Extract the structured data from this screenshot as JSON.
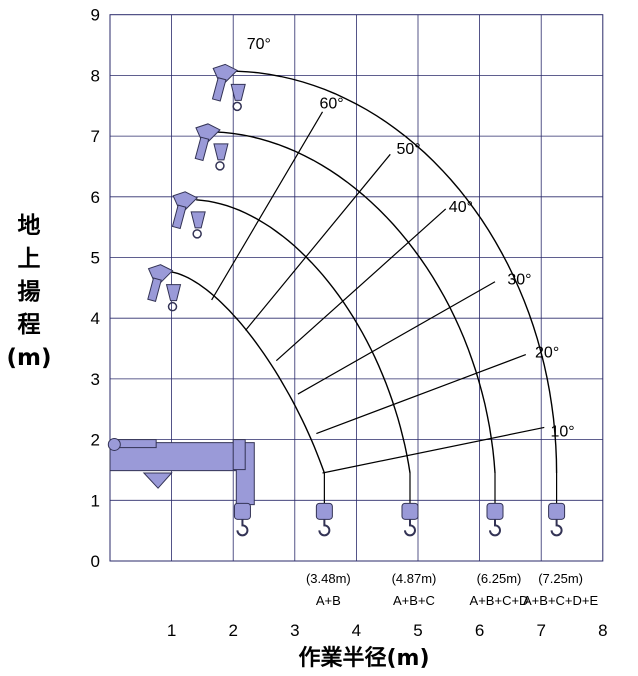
{
  "y_axis_title": [
    "地",
    "上",
    "揚",
    "程",
    "(m)"
  ],
  "x_axis_title": "作業半径(m)",
  "x_ticks": [
    "1",
    "2",
    "3",
    "4",
    "5",
    "6",
    "7",
    "8"
  ],
  "y_ticks": [
    "0",
    "1",
    "2",
    "3",
    "4",
    "5",
    "6",
    "7",
    "8",
    "9"
  ],
  "angle_labels": [
    "70°",
    "60°",
    "50°",
    "40°",
    "30°",
    "20°",
    "10°"
  ],
  "boom_sections": [
    {
      "radius_label": "(3.48m)",
      "config": "A+B",
      "radius": 3.48
    },
    {
      "radius_label": "(4.87m)",
      "config": "A+B+C",
      "radius": 4.87
    },
    {
      "radius_label": "(6.25m)",
      "config": "A+B+C+D",
      "radius": 6.25
    },
    {
      "radius_label": "(7.25m)",
      "config": "A+B+C+D+E",
      "radius": 7.25
    }
  ],
  "colors": {
    "grid": "#2a2a6a",
    "crane": "#9a9ad8",
    "crane_edge": "#333355",
    "curve": "#000000"
  }
}
